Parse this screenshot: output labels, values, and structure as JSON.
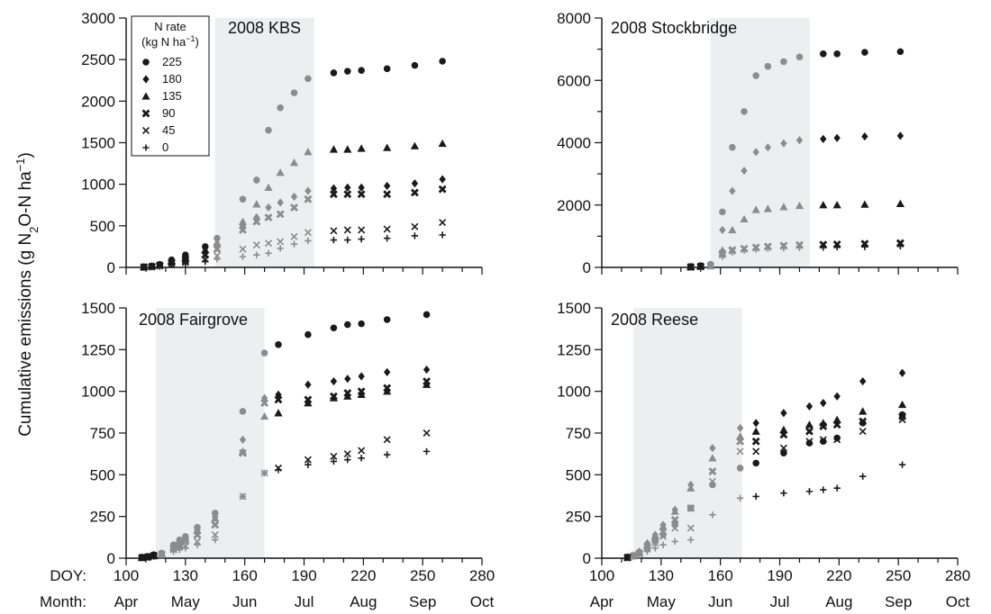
{
  "figure": {
    "y_label_parts": [
      "Cumulative emissions (g N",
      "2",
      "O-N ha",
      "−1",
      ")"
    ],
    "doy_prefix": "DOY:",
    "month_prefix": "Month:",
    "doy_ticks": [
      "100",
      "130",
      "160",
      "190",
      "220",
      "250",
      "280"
    ],
    "months": [
      "Apr",
      "May",
      "Jun",
      "Jul",
      "Aug",
      "Sep",
      "Oct"
    ],
    "legend": {
      "title_line1": "N rate",
      "title_line2_parts": [
        "(kg N ha",
        "−1",
        ")"
      ],
      "entries": [
        "225",
        "180",
        "135",
        "90",
        "45",
        "0"
      ]
    }
  },
  "colors": {
    "dark": "#1a1a1a",
    "gray": "#8c8c8c",
    "shade": "#eceef0"
  },
  "chart_data": [
    {
      "type": "scatter",
      "title": "2008 KBS",
      "xlabel": "DOY",
      "xlim": [
        100,
        280
      ],
      "ylim": [
        0,
        3000
      ],
      "yticks": [
        0,
        500,
        1000,
        1500,
        2000,
        2500,
        3000
      ],
      "shaded_range": [
        145,
        195
      ],
      "series": [
        {
          "name": "225",
          "marker": "circle",
          "x": [
            109,
            113,
            117,
            123,
            130,
            140,
            146,
            159,
            166,
            172,
            178,
            185,
            192,
            205,
            212,
            219,
            232,
            246,
            260
          ],
          "y": [
            5,
            15,
            35,
            90,
            150,
            250,
            350,
            820,
            1050,
            1650,
            1920,
            2100,
            2270,
            2340,
            2360,
            2370,
            2390,
            2430,
            2480
          ]
        },
        {
          "name": "180",
          "marker": "diamond",
          "x": [
            109,
            113,
            117,
            123,
            130,
            140,
            146,
            159,
            166,
            172,
            178,
            185,
            192,
            205,
            212,
            219,
            232,
            246,
            260
          ],
          "y": [
            5,
            12,
            28,
            70,
            110,
            180,
            250,
            500,
            600,
            720,
            780,
            850,
            920,
            950,
            960,
            960,
            980,
            1010,
            1060
          ]
        },
        {
          "name": "135",
          "marker": "triangle",
          "x": [
            109,
            113,
            117,
            123,
            130,
            140,
            146,
            159,
            166,
            172,
            178,
            185,
            192,
            205,
            212,
            219,
            232,
            246,
            260
          ],
          "y": [
            5,
            14,
            32,
            80,
            120,
            210,
            300,
            550,
            760,
            960,
            1140,
            1260,
            1390,
            1420,
            1420,
            1430,
            1440,
            1460,
            1490
          ]
        },
        {
          "name": "90",
          "marker": "x-bold",
          "x": [
            109,
            113,
            117,
            123,
            130,
            140,
            146,
            159,
            166,
            172,
            178,
            185,
            192,
            205,
            212,
            219,
            232,
            246,
            260
          ],
          "y": [
            4,
            10,
            25,
            60,
            95,
            150,
            220,
            450,
            550,
            600,
            640,
            720,
            820,
            880,
            880,
            880,
            880,
            900,
            940
          ]
        },
        {
          "name": "45",
          "marker": "x",
          "x": [
            109,
            113,
            117,
            123,
            130,
            140,
            146,
            159,
            166,
            172,
            178,
            185,
            192,
            205,
            212,
            219,
            232,
            246,
            260
          ],
          "y": [
            3,
            8,
            18,
            40,
            60,
            100,
            140,
            220,
            270,
            290,
            310,
            370,
            420,
            440,
            450,
            450,
            460,
            490,
            540
          ]
        },
        {
          "name": "0",
          "marker": "plus",
          "x": [
            109,
            113,
            117,
            123,
            130,
            140,
            146,
            159,
            166,
            172,
            178,
            185,
            192,
            205,
            212,
            219,
            232,
            246,
            260
          ],
          "y": [
            2,
            6,
            12,
            30,
            45,
            70,
            100,
            130,
            150,
            170,
            230,
            280,
            320,
            330,
            330,
            340,
            350,
            380,
            390
          ]
        }
      ]
    },
    {
      "type": "scatter",
      "title": "2008 Stockbridge",
      "xlabel": "DOY",
      "xlim": [
        100,
        280
      ],
      "ylim": [
        0,
        8000
      ],
      "yticks": [
        0,
        2000,
        4000,
        6000,
        8000
      ],
      "minor_yticks": [
        1000,
        3000,
        5000,
        7000
      ],
      "shaded_range": [
        155,
        205
      ],
      "series": [
        {
          "name": "225",
          "marker": "circle",
          "x": [
            145,
            150,
            155,
            161,
            166,
            172,
            178,
            184,
            192,
            200,
            212,
            219,
            233,
            251
          ],
          "y": [
            20,
            50,
            100,
            1780,
            3850,
            5000,
            6150,
            6450,
            6600,
            6750,
            6850,
            6850,
            6900,
            6920
          ]
        },
        {
          "name": "180",
          "marker": "diamond",
          "x": [
            145,
            150,
            155,
            161,
            166,
            172,
            178,
            184,
            192,
            200,
            212,
            219,
            233,
            251
          ],
          "y": [
            20,
            45,
            80,
            1200,
            2450,
            3100,
            3700,
            3850,
            3980,
            4080,
            4120,
            4150,
            4200,
            4220
          ]
        },
        {
          "name": "135",
          "marker": "triangle",
          "x": [
            145,
            150,
            155,
            161,
            166,
            172,
            178,
            184,
            192,
            200,
            212,
            219,
            233,
            251
          ],
          "y": [
            15,
            35,
            60,
            550,
            1200,
            1550,
            1850,
            1880,
            1940,
            1980,
            2000,
            2000,
            2020,
            2040
          ]
        },
        {
          "name": "90",
          "marker": "x-bold",
          "x": [
            145,
            150,
            155,
            161,
            166,
            172,
            178,
            184,
            192,
            200,
            212,
            219,
            233,
            251
          ],
          "y": [
            12,
            30,
            50,
            450,
            560,
            600,
            640,
            670,
            700,
            720,
            730,
            740,
            760,
            780
          ]
        },
        {
          "name": "45",
          "marker": "x",
          "x": [
            145,
            150,
            155,
            161,
            166,
            172,
            178,
            184,
            192,
            200,
            212,
            219,
            233,
            251
          ],
          "y": [
            10,
            28,
            45,
            400,
            520,
            580,
            620,
            650,
            680,
            700,
            710,
            720,
            740,
            750
          ]
        },
        {
          "name": "0",
          "marker": "plus",
          "x": [
            145,
            150,
            155,
            161,
            166,
            172,
            178,
            184,
            192,
            200,
            212,
            219,
            233,
            251
          ],
          "y": [
            8,
            22,
            40,
            340,
            480,
            540,
            580,
            600,
            620,
            630,
            640,
            650,
            660,
            680
          ]
        }
      ]
    },
    {
      "type": "scatter",
      "title": "2008 Fairgrove",
      "xlabel": "DOY",
      "xlim": [
        100,
        280
      ],
      "ylim": [
        0,
        1500
      ],
      "yticks": [
        0,
        250,
        500,
        750,
        1000,
        1250,
        1500
      ],
      "shaded_range": [
        115,
        170
      ],
      "series": [
        {
          "name": "225",
          "marker": "circle",
          "x": [
            108,
            111,
            114,
            118,
            124,
            127,
            130,
            136,
            145,
            159,
            170,
            177,
            192,
            205,
            212,
            219,
            232,
            252
          ],
          "y": [
            5,
            10,
            20,
            30,
            80,
            110,
            130,
            185,
            270,
            880,
            1230,
            1280,
            1340,
            1380,
            1400,
            1405,
            1430,
            1460
          ]
        },
        {
          "name": "180",
          "marker": "diamond",
          "x": [
            108,
            111,
            114,
            118,
            124,
            127,
            130,
            136,
            145,
            159,
            170,
            177,
            192,
            205,
            212,
            219,
            232,
            252
          ],
          "y": [
            4,
            8,
            18,
            28,
            75,
            100,
            120,
            170,
            250,
            710,
            960,
            980,
            1040,
            1060,
            1075,
            1090,
            1115,
            1130
          ]
        },
        {
          "name": "135",
          "marker": "triangle",
          "x": [
            108,
            111,
            114,
            118,
            124,
            127,
            130,
            136,
            145,
            159,
            170,
            177,
            192,
            205,
            212,
            219,
            232,
            252
          ],
          "y": [
            4,
            8,
            18,
            28,
            70,
            95,
            115,
            165,
            240,
            640,
            850,
            870,
            930,
            960,
            970,
            980,
            1000,
            1040
          ]
        },
        {
          "name": "90",
          "marker": "x-bold",
          "x": [
            108,
            111,
            114,
            118,
            124,
            127,
            130,
            136,
            145,
            159,
            170,
            177,
            192,
            205,
            212,
            219,
            232,
            252
          ],
          "y": [
            3,
            7,
            15,
            24,
            60,
            80,
            100,
            140,
            200,
            630,
            930,
            950,
            950,
            970,
            990,
            1000,
            1020,
            1060
          ]
        },
        {
          "name": "45",
          "marker": "x",
          "x": [
            108,
            111,
            114,
            118,
            124,
            127,
            130,
            136,
            145,
            159,
            170,
            177,
            192,
            205,
            212,
            219,
            232,
            252
          ],
          "y": [
            3,
            6,
            12,
            20,
            50,
            65,
            75,
            100,
            140,
            370,
            510,
            540,
            590,
            610,
            625,
            645,
            710,
            750
          ]
        },
        {
          "name": "0",
          "marker": "plus",
          "x": [
            108,
            111,
            114,
            118,
            124,
            127,
            130,
            136,
            145,
            159,
            170,
            177,
            192,
            205,
            212,
            219,
            232,
            252
          ],
          "y": [
            2,
            5,
            10,
            16,
            40,
            50,
            60,
            80,
            110,
            370,
            510,
            530,
            560,
            580,
            590,
            600,
            620,
            640
          ]
        }
      ]
    },
    {
      "type": "scatter",
      "title": "2008 Reese",
      "xlabel": "DOY",
      "xlim": [
        100,
        280
      ],
      "ylim": [
        0,
        1500
      ],
      "yticks": [
        0,
        250,
        500,
        750,
        1000,
        1250,
        1500
      ],
      "shaded_range": [
        116,
        171
      ],
      "series": [
        {
          "name": "225",
          "marker": "circle",
          "x": [
            113,
            116,
            119,
            123,
            127,
            131,
            137,
            145,
            156,
            170,
            178,
            192,
            205,
            212,
            219,
            232,
            252
          ],
          "y": [
            5,
            15,
            30,
            60,
            100,
            140,
            200,
            300,
            440,
            540,
            570,
            630,
            690,
            700,
            720,
            810,
            860
          ]
        },
        {
          "name": "180",
          "marker": "diamond",
          "x": [
            113,
            116,
            119,
            123,
            127,
            131,
            137,
            145,
            156,
            170,
            178,
            192,
            205,
            212,
            219,
            232,
            252
          ],
          "y": [
            6,
            18,
            40,
            90,
            140,
            200,
            290,
            440,
            660,
            780,
            810,
            870,
            910,
            930,
            970,
            1060,
            1110
          ]
        },
        {
          "name": "135",
          "marker": "triangle",
          "x": [
            113,
            116,
            119,
            123,
            127,
            131,
            137,
            145,
            156,
            170,
            178,
            192,
            205,
            212,
            219,
            232,
            252
          ],
          "y": [
            5,
            16,
            36,
            80,
            130,
            190,
            280,
            420,
            600,
            730,
            760,
            770,
            800,
            810,
            830,
            880,
            920
          ]
        },
        {
          "name": "90",
          "marker": "x-bold",
          "x": [
            113,
            116,
            119,
            123,
            127,
            131,
            137,
            145,
            156,
            170,
            178,
            192,
            205,
            212,
            219,
            232,
            252
          ],
          "y": [
            4,
            14,
            30,
            70,
            110,
            160,
            230,
            300,
            520,
            700,
            700,
            740,
            760,
            790,
            800,
            820,
            850
          ]
        },
        {
          "name": "45",
          "marker": "x",
          "x": [
            113,
            116,
            119,
            123,
            127,
            131,
            137,
            145,
            156,
            170,
            178,
            192,
            205,
            212,
            219,
            232,
            252
          ],
          "y": [
            4,
            12,
            26,
            60,
            90,
            130,
            180,
            180,
            460,
            640,
            640,
            660,
            700,
            710,
            710,
            760,
            830
          ]
        },
        {
          "name": "0",
          "marker": "plus",
          "x": [
            113,
            116,
            119,
            123,
            127,
            131,
            137,
            145,
            156,
            170,
            178,
            192,
            205,
            212,
            219,
            232,
            252
          ],
          "y": [
            3,
            8,
            16,
            40,
            60,
            80,
            100,
            110,
            260,
            360,
            370,
            390,
            400,
            410,
            420,
            490,
            560
          ]
        }
      ]
    }
  ]
}
